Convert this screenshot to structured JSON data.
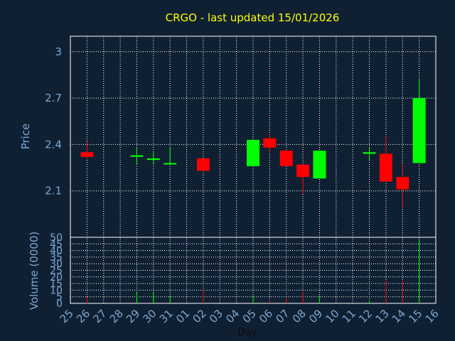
{
  "chart_data": {
    "type": "candlestick",
    "title": "CRGO - last updated 15/01/2026",
    "xlabel": "Day",
    "ylabel": "Price",
    "volume_label": "Volume (0000)",
    "x_tick_labels": [
      "25",
      "26",
      "27",
      "28",
      "29",
      "30",
      "31",
      "01",
      "02",
      "03",
      "04",
      "05",
      "06",
      "07",
      "08",
      "09",
      "10",
      "11",
      "12",
      "13",
      "14",
      "15",
      "16"
    ],
    "price_ticks": [
      2.1,
      2.4,
      2.7,
      3
    ],
    "price_tick_labels": [
      "2.1",
      "2.4",
      "2.7",
      "3"
    ],
    "price_range": [
      1.8,
      3.1
    ],
    "volume_ticks": [
      0,
      5,
      10,
      15,
      20,
      25,
      30,
      35,
      40,
      45,
      50
    ],
    "volume_tick_labels": [
      "0",
      "5",
      "10",
      "15",
      "20",
      "25",
      "30",
      "35",
      "40",
      "45",
      "50"
    ],
    "volume_range": [
      0,
      50
    ],
    "grid": true,
    "up_color": "#00ff00",
    "down_color": "#ff0000",
    "candles": [
      {
        "day": "26",
        "open": 2.35,
        "close": 2.32,
        "high": 2.42,
        "low": 2.31,
        "volume": 5
      },
      {
        "day": "29",
        "open": 2.32,
        "close": 2.33,
        "high": 2.38,
        "low": 2.27,
        "volume": 9
      },
      {
        "day": "30",
        "open": 2.3,
        "close": 2.31,
        "high": 2.35,
        "low": 2.27,
        "volume": 9
      },
      {
        "day": "31",
        "open": 2.28,
        "close": 2.28,
        "high": 2.38,
        "low": 2.28,
        "volume": 6
      },
      {
        "day": "02",
        "open": 2.31,
        "close": 2.23,
        "high": 2.31,
        "low": 2.23,
        "volume": 10
      },
      {
        "day": "05",
        "open": 2.26,
        "close": 2.43,
        "high": 2.43,
        "low": 2.26,
        "volume": 6
      },
      {
        "day": "06",
        "open": 2.44,
        "close": 2.38,
        "high": 2.47,
        "low": 2.35,
        "volume": 2
      },
      {
        "day": "07",
        "open": 2.36,
        "close": 2.26,
        "high": 2.36,
        "low": 2.26,
        "volume": 4
      },
      {
        "day": "08",
        "open": 2.27,
        "close": 2.19,
        "high": 2.27,
        "low": 2.08,
        "volume": 9
      },
      {
        "day": "09",
        "open": 2.18,
        "close": 2.36,
        "high": 2.36,
        "low": 2.18,
        "volume": 6
      },
      {
        "day": "12",
        "open": 2.34,
        "close": 2.35,
        "high": 2.38,
        "low": 2.3,
        "volume": 2
      },
      {
        "day": "13",
        "open": 2.34,
        "close": 2.16,
        "high": 2.45,
        "low": 2.16,
        "volume": 17
      },
      {
        "day": "14",
        "open": 2.19,
        "close": 2.11,
        "high": 2.28,
        "low": 1.99,
        "volume": 17
      },
      {
        "day": "15",
        "open": 2.28,
        "close": 2.7,
        "high": 2.82,
        "low": 2.28,
        "volume": 48
      }
    ]
  }
}
